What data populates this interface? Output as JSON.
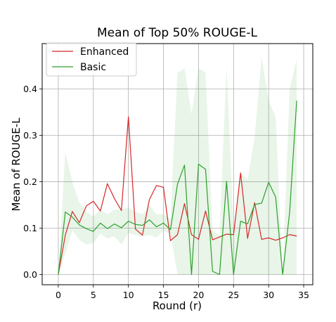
{
  "chart_data": {
    "type": "line",
    "title": "Mean of Top 50% ROUGE-L",
    "xlabel": "Round (r)",
    "ylabel": "Mean of ROUGE-L",
    "xlim": [
      -2.3,
      36.3
    ],
    "ylim": [
      -0.022,
      0.498
    ],
    "xticks": [
      0,
      5,
      10,
      15,
      20,
      25,
      30,
      35
    ],
    "yticks": [
      0.0,
      0.1,
      0.2,
      0.3,
      0.4
    ],
    "ytick_labels": [
      "0.0",
      "0.1",
      "0.2",
      "0.3",
      "0.4"
    ],
    "grid": true,
    "legend_position": "top-left",
    "x": [
      0,
      1,
      2,
      3,
      4,
      5,
      6,
      7,
      8,
      9,
      10,
      11,
      12,
      13,
      14,
      15,
      16,
      17,
      18,
      19,
      20,
      21,
      22,
      23,
      24,
      25,
      26,
      27,
      28,
      29,
      30,
      31,
      32,
      33,
      34
    ],
    "series": [
      {
        "name": "Enhanced",
        "color": "#d62728",
        "values": [
          0.0,
          0.085,
          0.136,
          0.112,
          0.148,
          0.158,
          0.137,
          0.196,
          0.164,
          0.138,
          0.34,
          0.098,
          0.085,
          0.162,
          0.192,
          0.188,
          0.073,
          0.086,
          0.153,
          0.086,
          0.076,
          0.137,
          0.075,
          0.081,
          0.087,
          0.086,
          0.219,
          0.078,
          0.155,
          0.076,
          0.079,
          0.074,
          0.079,
          0.086,
          0.083
        ]
      },
      {
        "name": "Basic",
        "color": "#2ca02c",
        "values": [
          0.0,
          0.135,
          0.124,
          0.107,
          0.099,
          0.093,
          0.111,
          0.099,
          0.109,
          0.101,
          0.115,
          0.108,
          0.106,
          0.118,
          0.103,
          0.111,
          0.097,
          0.195,
          0.236,
          0.0,
          0.238,
          0.227,
          0.007,
          0.0,
          0.201,
          0.0,
          0.115,
          0.109,
          0.151,
          0.154,
          0.199,
          0.167,
          0.0,
          0.135,
          0.375
        ],
        "band_color": "#2ca02c",
        "band_lower": [
          0.0,
          0.045,
          0.095,
          0.075,
          0.065,
          0.068,
          0.088,
          0.078,
          0.082,
          0.065,
          0.09,
          0.085,
          0.082,
          0.085,
          0.08,
          0.095,
          0.088,
          0.0,
          0.0,
          0.0,
          0.0,
          0.0,
          0.0,
          0.0,
          0.0,
          0.0,
          0.0,
          0.0,
          0.0,
          0.0,
          0.0,
          0.0,
          0.0,
          0.0,
          0.0
        ],
        "band_upper": [
          0.0,
          0.265,
          0.2,
          0.155,
          0.135,
          0.125,
          0.14,
          0.13,
          0.14,
          0.14,
          0.145,
          0.135,
          0.13,
          0.15,
          0.13,
          0.13,
          0.12,
          0.435,
          0.445,
          0.345,
          0.445,
          0.435,
          0.095,
          0.085,
          0.45,
          0.095,
          0.22,
          0.205,
          0.295,
          0.47,
          0.375,
          0.34,
          0.0,
          0.4,
          0.465
        ]
      }
    ]
  }
}
